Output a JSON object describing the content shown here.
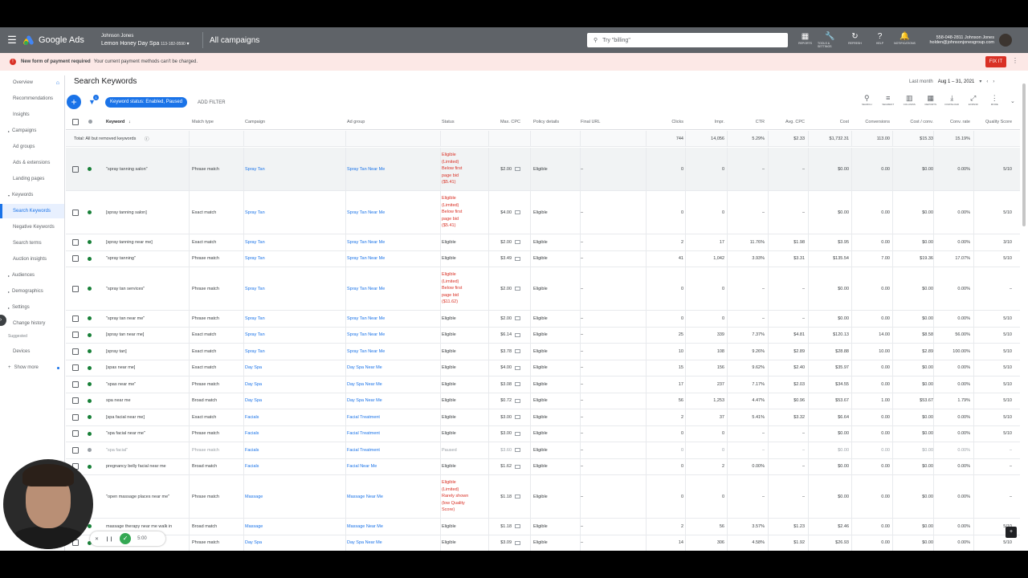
{
  "topbar": {
    "app_name": "Google Ads",
    "account_owner": "Johnson Jones",
    "account_name": "Lemon Honey Day Spa",
    "account_id": "113-182-0590",
    "page_title": "All campaigns",
    "search_placeholder": "Try \"billing\"",
    "icons": [
      {
        "label": "REPORTS",
        "icon": "reports-icon",
        "glyph": "▦"
      },
      {
        "label": "TOOLS & SETTINGS",
        "icon": "wrench-icon",
        "glyph": "🔧"
      },
      {
        "label": "REFRESH",
        "icon": "refresh-icon",
        "glyph": "↻"
      },
      {
        "label": "HELP",
        "icon": "help-icon",
        "glyph": "?"
      },
      {
        "label": "NOTIFICATIONS",
        "icon": "bell-icon",
        "glyph": "🔔"
      }
    ],
    "user_line1": "558-048-2811 Johnson Jones",
    "user_line2": "holden@johnsonjonesgroup.com"
  },
  "alert": {
    "title": "New form of payment required",
    "message": "Your current payment methods can't be charged.",
    "action": "FIX IT"
  },
  "sidebar": {
    "items": [
      {
        "label": "Overview",
        "y": 0
      },
      {
        "label": "Recommendations"
      },
      {
        "label": "Insights"
      },
      {
        "label": "Campaigns"
      },
      {
        "label": "Ad groups"
      },
      {
        "label": "Ads & extensions"
      },
      {
        "label": "Landing pages"
      },
      {
        "label": "Keywords"
      },
      {
        "label": "Search Keywords"
      },
      {
        "label": "Negative Keywords"
      },
      {
        "label": "Search terms"
      },
      {
        "label": "Auction insights"
      },
      {
        "label": "Audiences"
      },
      {
        "label": "Demographics"
      },
      {
        "label": "Settings"
      },
      {
        "label": "Change history"
      }
    ],
    "suggested_label": "Suggested",
    "suggested_items": [
      "Devices"
    ],
    "show_more": "Show more"
  },
  "main": {
    "title": "Search Keywords",
    "date_label": "Last month",
    "date_range": "Aug 1 – 31, 2021",
    "filter_count": "1",
    "filter_chip": "Keyword status: Enabled, Paused",
    "add_filter": "ADD FILTER",
    "tools": [
      "SEARCH",
      "SEGMENT",
      "COLUMNS",
      "REPORTS",
      "DOWNLOAD",
      "EXPAND",
      "MORE"
    ]
  },
  "table": {
    "columns": [
      "Keyword",
      "Match type",
      "Campaign",
      "Ad group",
      "Status",
      "Max. CPC",
      "Policy details",
      "Final URL",
      "Clicks",
      "Impr.",
      "CTR",
      "Avg. CPC",
      "Cost",
      "Conversions",
      "Cost / conv.",
      "Conv. rate",
      "Quality Score"
    ],
    "total": {
      "label": "Total: All but removed keywords",
      "clicks": "744",
      "impr": "14,056",
      "ctr": "5.29%",
      "avg_cpc": "$2.33",
      "cost": "$1,732.31",
      "conversions": "113.00",
      "cost_conv": "$15.33",
      "conv_rate": "15.19%"
    },
    "rows": [
      {
        "keyword": "\"spray tanning salon\"",
        "match": "Phrase match",
        "campaign": "Spray Tan",
        "adgroup": "Spray Tan Near Me",
        "status": [
          "Eligible",
          "(Limited)",
          "Below first",
          "page bid",
          "($5.41)"
        ],
        "maxcpc": "$2.00",
        "policy": "Eligible",
        "url": "–",
        "clicks": "0",
        "impr": "0",
        "ctr": "–",
        "avgcpc": "–",
        "cost": "$0.00",
        "conv": "0.00",
        "costconv": "$0.00",
        "convrate": "0.00%",
        "qs": "5/10"
      },
      {
        "keyword": "[spray tanning salon]",
        "match": "Exact match",
        "campaign": "Spray Tan",
        "adgroup": "Spray Tan Near Me",
        "status": [
          "Eligible",
          "(Limited)",
          "Below first",
          "page bid",
          "($5.41)"
        ],
        "maxcpc": "$4.00",
        "policy": "Eligible",
        "url": "–",
        "clicks": "0",
        "impr": "0",
        "ctr": "–",
        "avgcpc": "–",
        "cost": "$0.00",
        "conv": "0.00",
        "costconv": "$0.00",
        "convrate": "0.00%",
        "qs": "5/10"
      },
      {
        "keyword": "[spray tanning near me]",
        "match": "Exact match",
        "campaign": "Spray Tan",
        "adgroup": "Spray Tan Near Me",
        "status": [
          "Eligible"
        ],
        "maxcpc": "$2.00",
        "policy": "Eligible",
        "url": "–",
        "clicks": "2",
        "impr": "17",
        "ctr": "11.76%",
        "avgcpc": "$1.98",
        "cost": "$3.95",
        "conv": "0.00",
        "costconv": "$0.00",
        "convrate": "0.00%",
        "qs": "3/10"
      },
      {
        "keyword": "\"spray tanning\"",
        "match": "Phrase match",
        "campaign": "Spray Tan",
        "adgroup": "Spray Tan Near Me",
        "status": [
          "Eligible"
        ],
        "maxcpc": "$3.49",
        "policy": "Eligible",
        "url": "–",
        "clicks": "41",
        "impr": "1,042",
        "ctr": "3.93%",
        "avgcpc": "$3.31",
        "cost": "$135.54",
        "conv": "7.00",
        "costconv": "$19.36",
        "convrate": "17.07%",
        "qs": "5/10"
      },
      {
        "keyword": "\"spray tan services\"",
        "match": "Phrase match",
        "campaign": "Spray Tan",
        "adgroup": "Spray Tan Near Me",
        "status": [
          "Eligible",
          "(Limited)",
          "Below first",
          "page bid",
          "($11.62)"
        ],
        "maxcpc": "$2.00",
        "policy": "Eligible",
        "url": "–",
        "clicks": "0",
        "impr": "0",
        "ctr": "–",
        "avgcpc": "–",
        "cost": "$0.00",
        "conv": "0.00",
        "costconv": "$0.00",
        "convrate": "0.00%",
        "qs": "–"
      },
      {
        "keyword": "\"spray tan near me\"",
        "match": "Phrase match",
        "campaign": "Spray Tan",
        "adgroup": "Spray Tan Near Me",
        "status": [
          "Eligible"
        ],
        "maxcpc": "$2.00",
        "policy": "Eligible",
        "url": "–",
        "clicks": "0",
        "impr": "0",
        "ctr": "–",
        "avgcpc": "–",
        "cost": "$0.00",
        "conv": "0.00",
        "costconv": "$0.00",
        "convrate": "0.00%",
        "qs": "5/10"
      },
      {
        "keyword": "[spray tan near me]",
        "match": "Exact match",
        "campaign": "Spray Tan",
        "adgroup": "Spray Tan Near Me",
        "status": [
          "Eligible"
        ],
        "maxcpc": "$6.14",
        "policy": "Eligible",
        "url": "–",
        "clicks": "25",
        "impr": "339",
        "ctr": "7.37%",
        "avgcpc": "$4.81",
        "cost": "$120.13",
        "conv": "14.00",
        "costconv": "$8.58",
        "convrate": "56.00%",
        "qs": "5/10"
      },
      {
        "keyword": "[spray tan]",
        "match": "Exact match",
        "campaign": "Spray Tan",
        "adgroup": "Spray Tan Near Me",
        "status": [
          "Eligible"
        ],
        "maxcpc": "$3.78",
        "policy": "Eligible",
        "url": "–",
        "clicks": "10",
        "impr": "108",
        "ctr": "9.26%",
        "avgcpc": "$2.89",
        "cost": "$28.88",
        "conv": "10.00",
        "costconv": "$2.89",
        "convrate": "100.00%",
        "qs": "5/10"
      },
      {
        "keyword": "[spas near me]",
        "match": "Exact match",
        "campaign": "Day Spa",
        "adgroup": "Day Spa Near Me",
        "status": [
          "Eligible"
        ],
        "maxcpc": "$4.00",
        "policy": "Eligible",
        "url": "–",
        "clicks": "15",
        "impr": "156",
        "ctr": "9.62%",
        "avgcpc": "$2.40",
        "cost": "$35.97",
        "conv": "0.00",
        "costconv": "$0.00",
        "convrate": "0.00%",
        "qs": "5/10"
      },
      {
        "keyword": "\"spas near me\"",
        "match": "Phrase match",
        "campaign": "Day Spa",
        "adgroup": "Day Spa Near Me",
        "status": [
          "Eligible"
        ],
        "maxcpc": "$3.08",
        "policy": "Eligible",
        "url": "–",
        "clicks": "17",
        "impr": "237",
        "ctr": "7.17%",
        "avgcpc": "$2.03",
        "cost": "$34.55",
        "conv": "0.00",
        "costconv": "$0.00",
        "convrate": "0.00%",
        "qs": "5/10"
      },
      {
        "keyword": "spa near me",
        "match": "Broad match",
        "campaign": "Day Spa",
        "adgroup": "Day Spa Near Me",
        "status": [
          "Eligible"
        ],
        "maxcpc": "$0.72",
        "policy": "Eligible",
        "url": "–",
        "clicks": "56",
        "impr": "1,253",
        "ctr": "4.47%",
        "avgcpc": "$0.96",
        "cost": "$53.67",
        "conv": "1.00",
        "costconv": "$53.67",
        "convrate": "1.79%",
        "qs": "5/10"
      },
      {
        "keyword": "[spa facial near me]",
        "match": "Exact match",
        "campaign": "Facials",
        "adgroup": "Facial Treatment",
        "status": [
          "Eligible"
        ],
        "maxcpc": "$3.00",
        "policy": "Eligible",
        "url": "–",
        "clicks": "2",
        "impr": "37",
        "ctr": "5.41%",
        "avgcpc": "$3.32",
        "cost": "$6.64",
        "conv": "0.00",
        "costconv": "$0.00",
        "convrate": "0.00%",
        "qs": "5/10"
      },
      {
        "keyword": "\"spa facial near me\"",
        "match": "Phrase match",
        "campaign": "Facials",
        "adgroup": "Facial Treatment",
        "status": [
          "Eligible"
        ],
        "maxcpc": "$3.00",
        "policy": "Eligible",
        "url": "–",
        "clicks": "0",
        "impr": "0",
        "ctr": "–",
        "avgcpc": "–",
        "cost": "$0.00",
        "conv": "0.00",
        "costconv": "$0.00",
        "convrate": "0.00%",
        "qs": "5/10"
      },
      {
        "keyword": "\"spa facial\"",
        "match": "Phrase match",
        "campaign": "Facials",
        "adgroup": "Facial Treatment",
        "status": [
          "Paused"
        ],
        "maxcpc": "$3.60",
        "policy": "Eligible",
        "url": "–",
        "clicks": "0",
        "impr": "0",
        "ctr": "–",
        "avgcpc": "–",
        "cost": "$0.00",
        "conv": "0.00",
        "costconv": "$0.00",
        "convrate": "0.00%",
        "qs": "–",
        "paused": true
      },
      {
        "keyword": "pregnancy belly facial near me",
        "match": "Broad match",
        "campaign": "Facials",
        "adgroup": "Facial Near Me",
        "status": [
          "Eligible"
        ],
        "maxcpc": "$1.62",
        "policy": "Eligible",
        "url": "–",
        "clicks": "0",
        "impr": "2",
        "ctr": "0.00%",
        "avgcpc": "–",
        "cost": "$0.00",
        "conv": "0.00",
        "costconv": "$0.00",
        "convrate": "0.00%",
        "qs": "–"
      },
      {
        "keyword": "\"open massage places near me\"",
        "match": "Phrase match",
        "campaign": "Massage",
        "adgroup": "Massage Near Me",
        "status": [
          "Eligible",
          "(Limited)",
          "Rarely shown",
          "(low Quality",
          "Score)"
        ],
        "maxcpc": "$1.18",
        "policy": "Eligible",
        "url": "–",
        "clicks": "0",
        "impr": "0",
        "ctr": "–",
        "avgcpc": "–",
        "cost": "$0.00",
        "conv": "0.00",
        "costconv": "$0.00",
        "convrate": "0.00%",
        "qs": "–"
      },
      {
        "keyword": "massage therapy near me walk in",
        "match": "Broad match",
        "campaign": "Massage",
        "adgroup": "Massage Near Me",
        "status": [
          "Eligible"
        ],
        "maxcpc": "$1.18",
        "policy": "Eligible",
        "url": "–",
        "clicks": "2",
        "impr": "56",
        "ctr": "3.57%",
        "avgcpc": "$1.23",
        "cost": "$2.46",
        "conv": "0.00",
        "costconv": "$0.00",
        "convrate": "0.00%",
        "qs": "5/10"
      },
      {
        "keyword": "",
        "match": "Phrase match",
        "campaign": "Day Spa",
        "adgroup": "Day Spa Near Me",
        "status": [
          "Eligible"
        ],
        "maxcpc": "$3.09",
        "policy": "Eligible",
        "url": "–",
        "clicks": "14",
        "impr": "306",
        "ctr": "4.58%",
        "avgcpc": "$1.92",
        "cost": "$26.93",
        "conv": "0.00",
        "costconv": "$0.00",
        "convrate": "0.00%",
        "qs": "5/10"
      }
    ]
  },
  "recorder": {
    "timer": "5:00"
  },
  "colors": {
    "brand_blue": "#1a73e8",
    "alert_red": "#d93025",
    "enabled_green": "#188038",
    "topbar": "#5f6368"
  }
}
